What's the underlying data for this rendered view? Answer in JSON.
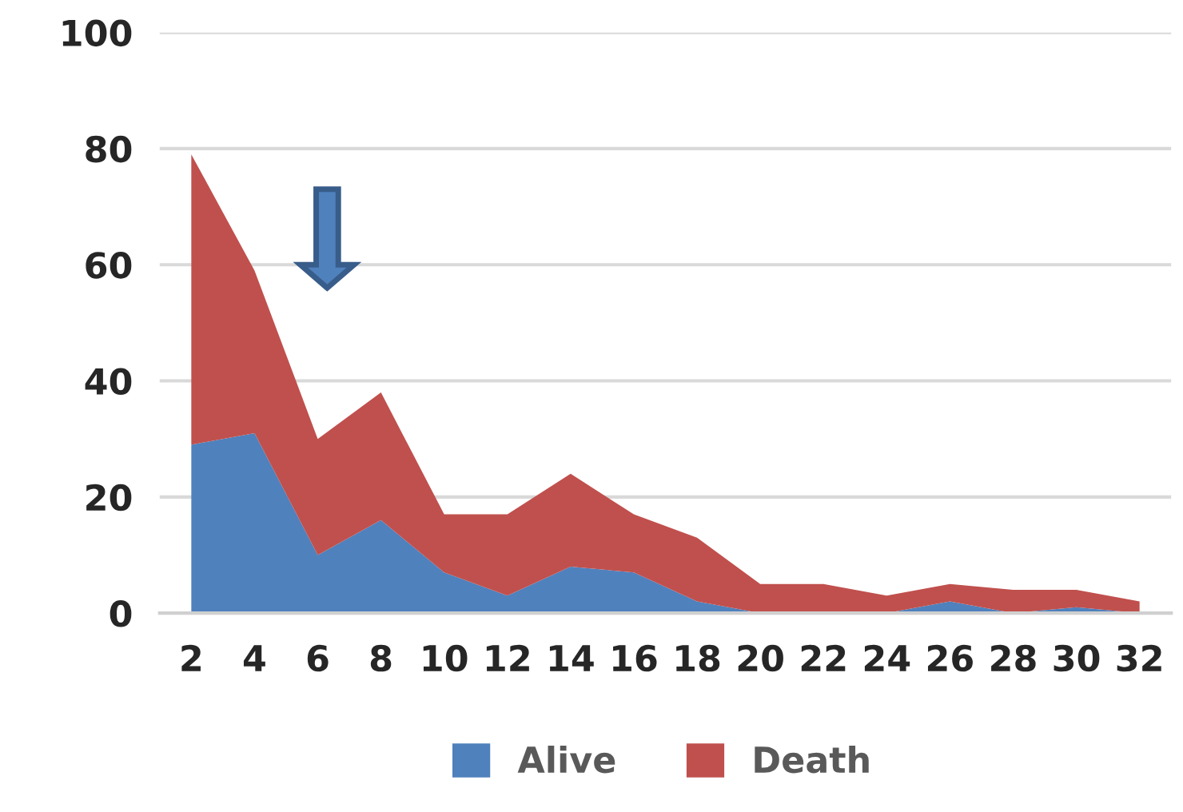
{
  "chart_data": {
    "type": "area",
    "stacked": true,
    "categories": [
      "2",
      "4",
      "6",
      "8",
      "10",
      "12",
      "14",
      "16",
      "18",
      "20",
      "22",
      "24",
      "26",
      "28",
      "30",
      "32"
    ],
    "series": [
      {
        "name": "Alive",
        "color": "#4f81bd",
        "values": [
          29,
          31,
          10,
          16,
          7,
          3,
          8,
          7,
          2,
          0,
          0,
          0,
          2,
          0,
          1,
          0
        ]
      },
      {
        "name": "Death",
        "color": "#c0504d",
        "values": [
          50,
          28,
          20,
          22,
          10,
          14,
          16,
          10,
          11,
          5,
          5,
          3,
          3,
          4,
          3,
          2
        ]
      }
    ],
    "ylim": [
      0,
      100
    ],
    "yticks": [
      0,
      20,
      40,
      60,
      80,
      100
    ],
    "grid": "y",
    "legend": "bottom"
  }
}
